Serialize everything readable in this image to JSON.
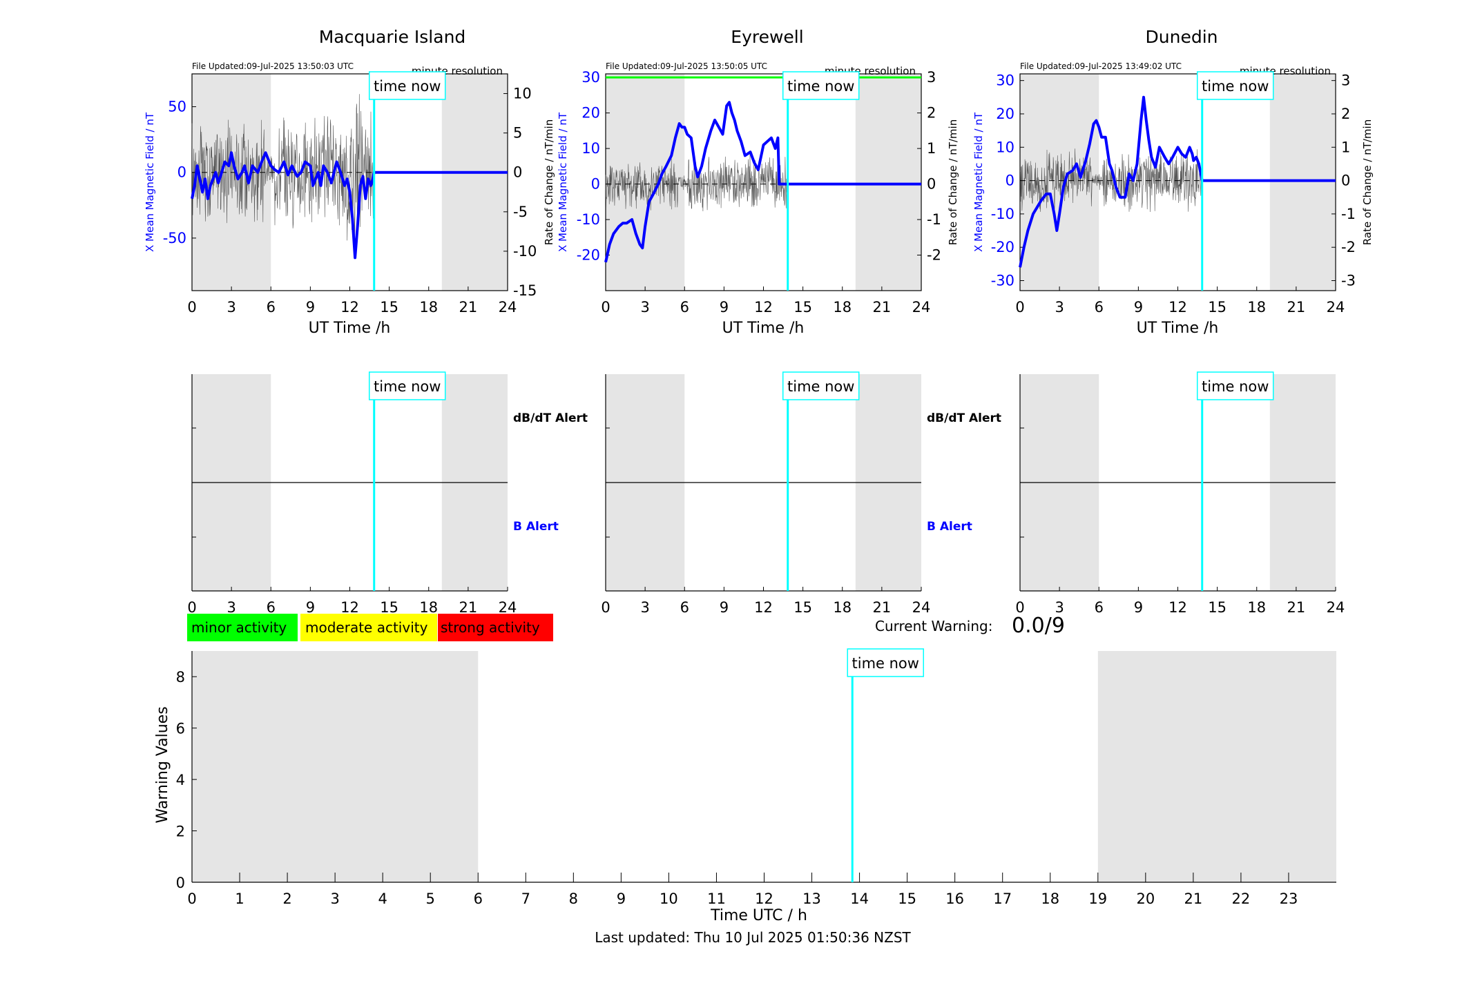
{
  "colors": {
    "b_series": "#0000ff",
    "rate_series": "#000000",
    "time_now": "#00ffff",
    "shade": "#e5e5e5",
    "minor": "#00ff00",
    "moderate": "#ffff00",
    "strong": "#ff0000",
    "threshold": "#00ff00"
  },
  "time_now_label": "time now",
  "dbdt_alert_label": "dB/dT Alert",
  "b_alert_label": "B Alert",
  "legend": {
    "minor": "minor activity",
    "moderate": "moderate activity",
    "strong": "strong activity"
  },
  "current_warning": {
    "label": "Current Warning:",
    "value": "0.0/9"
  },
  "last_updated": "Last updated: Thu 10 Jul 2025 01:50:36 NZST",
  "chart_data": [
    {
      "type": "line",
      "title": "Macquarie Island",
      "file_updated": "File Updated:09-Jul-2025 13:50:03 UTC",
      "resolution": "minute resolution",
      "xlabel": "UT Time /h",
      "ylabel": "X Mean Magnetic Field / nT",
      "y2label": "Rate of Change / nT/min",
      "xlim": [
        0,
        24
      ],
      "ylim": [
        -90,
        75
      ],
      "y2lim": [
        -15,
        12.5
      ],
      "xticks": [
        0,
        3,
        6,
        9,
        12,
        15,
        18,
        21,
        24
      ],
      "yticks": [
        -50,
        0,
        50
      ],
      "y2ticks": [
        -15,
        -10,
        -5,
        0,
        5,
        10
      ],
      "shade": [
        [
          0,
          6
        ],
        [
          19,
          24
        ]
      ],
      "time_now": 13.85,
      "series": [
        {
          "x": [
            0,
            0.2,
            0.4,
            0.6,
            0.8,
            1.0,
            1.2,
            1.4,
            1.6,
            1.8,
            2.0,
            2.2,
            2.5,
            2.8,
            3.0,
            3.2,
            3.5,
            3.8,
            4.0,
            4.3,
            4.6,
            5.0,
            5.3,
            5.6,
            5.8,
            6.0,
            6.3,
            6.6,
            7.0,
            7.3,
            7.6,
            8.0,
            8.3,
            8.6,
            9.0,
            9.2,
            9.4,
            9.6,
            9.8,
            10.0,
            10.3,
            10.6,
            11.0,
            11.3,
            11.6,
            11.8,
            12.0,
            12.2,
            12.4,
            12.6,
            12.8,
            13.0,
            13.2,
            13.4,
            13.6,
            13.75,
            13.85,
            24
          ],
          "values": [
            -20,
            -10,
            5,
            -5,
            -15,
            -5,
            -20,
            -10,
            -5,
            0,
            -8,
            -2,
            8,
            5,
            15,
            5,
            -5,
            0,
            5,
            -8,
            5,
            0,
            8,
            15,
            10,
            5,
            2,
            0,
            8,
            -2,
            5,
            -3,
            0,
            8,
            5,
            -10,
            -5,
            0,
            -10,
            5,
            0,
            -8,
            8,
            0,
            -10,
            -5,
            -15,
            -35,
            -65,
            -40,
            -10,
            -3,
            -20,
            -5,
            -10,
            -5,
            0,
            0
          ]
        },
        {
          "axis": "right",
          "generated": true,
          "x": [
            0,
            13.85
          ],
          "values": [
            0,
            0
          ]
        }
      ]
    },
    {
      "type": "line",
      "title": "Eyrewell",
      "file_updated": "File Updated:09-Jul-2025 13:50:05 UTC",
      "resolution": "minute resolution",
      "xlabel": "UT Time /h",
      "ylabel": "X Mean Magnetic Field / nT",
      "y2label": "Rate of Change / nT/min",
      "xlim": [
        0,
        24
      ],
      "ylim": [
        -30,
        31
      ],
      "y2lim": [
        -3,
        3.1
      ],
      "xticks": [
        0,
        3,
        6,
        9,
        12,
        15,
        18,
        21,
        24
      ],
      "yticks": [
        -20,
        -10,
        0,
        10,
        20,
        30
      ],
      "y2ticks": [
        -2,
        -1,
        0,
        1,
        2,
        3
      ],
      "shade": [
        [
          0,
          6
        ],
        [
          19,
          24
        ]
      ],
      "time_now": 13.85,
      "threshold": 30,
      "series": [
        {
          "x": [
            0,
            0.3,
            0.6,
            1.0,
            1.3,
            1.6,
            2.0,
            2.3,
            2.6,
            2.8,
            3.0,
            3.3,
            3.6,
            4.0,
            4.3,
            4.6,
            5.0,
            5.3,
            5.6,
            5.8,
            6.0,
            6.2,
            6.5,
            6.8,
            7.0,
            7.3,
            7.6,
            8.0,
            8.3,
            8.6,
            8.9,
            9.2,
            9.4,
            9.6,
            9.8,
            10.0,
            10.3,
            10.6,
            11.0,
            11.3,
            11.6,
            12.0,
            12.3,
            12.6,
            12.9,
            13.1,
            13.2,
            24
          ],
          "values": [
            -22,
            -17,
            -14,
            -12,
            -11,
            -11,
            -10,
            -14,
            -17,
            -18,
            -12,
            -5,
            -3,
            0,
            3,
            5,
            8,
            13,
            17,
            16,
            16,
            14,
            13,
            5,
            2,
            5,
            10,
            15,
            18,
            16,
            14,
            22,
            23,
            20,
            18,
            15,
            12,
            8,
            9,
            6,
            4,
            11,
            12,
            13,
            10,
            13,
            0,
            0
          ]
        },
        {
          "axis": "right",
          "generated": true,
          "x": [
            0,
            13.85
          ],
          "values": [
            0,
            0
          ]
        }
      ]
    },
    {
      "type": "line",
      "title": "Dunedin",
      "file_updated": "File Updated:09-Jul-2025 13:49:02 UTC",
      "resolution": "minute resolution",
      "xlabel": "UT Time /h",
      "ylabel": "X Mean Magnetic Field / nT",
      "y2label": "Rate of Change / nT/min",
      "xlim": [
        0,
        24
      ],
      "ylim": [
        -33,
        32
      ],
      "y2lim": [
        -3.3,
        3.2
      ],
      "xticks": [
        0,
        3,
        6,
        9,
        12,
        15,
        18,
        21,
        24
      ],
      "yticks": [
        -30,
        -20,
        -10,
        0,
        10,
        20,
        30
      ],
      "y2ticks": [
        -3,
        -2,
        -1,
        0,
        1,
        2,
        3
      ],
      "shade": [
        [
          0,
          6
        ],
        [
          19,
          24
        ]
      ],
      "time_now": 13.85,
      "series": [
        {
          "x": [
            0,
            0.3,
            0.6,
            1.0,
            1.3,
            1.6,
            2.0,
            2.3,
            2.6,
            2.8,
            3.0,
            3.3,
            3.6,
            4.0,
            4.3,
            4.6,
            5.0,
            5.3,
            5.6,
            5.8,
            6.0,
            6.2,
            6.5,
            6.8,
            7.0,
            7.3,
            7.6,
            8.0,
            8.3,
            8.6,
            8.9,
            9.2,
            9.4,
            9.6,
            9.8,
            10.0,
            10.3,
            10.6,
            11.0,
            11.3,
            11.6,
            12.0,
            12.3,
            12.6,
            12.9,
            13.1,
            13.2,
            13.4,
            13.6,
            13.85,
            24
          ],
          "values": [
            -26,
            -20,
            -15,
            -10,
            -8,
            -6,
            -4,
            -4,
            -10,
            -15,
            -10,
            -2,
            2,
            3,
            5,
            1,
            6,
            11,
            17,
            18,
            16,
            13,
            13,
            5,
            3,
            -2,
            -5,
            -5,
            2,
            0,
            5,
            18,
            25,
            18,
            12,
            7,
            4,
            10,
            7,
            5,
            7,
            10,
            8,
            7,
            10,
            8,
            6,
            7,
            5,
            0,
            0
          ]
        },
        {
          "axis": "right",
          "generated": true,
          "x": [
            0,
            13.85
          ],
          "values": [
            0,
            0
          ]
        }
      ]
    },
    {
      "type": "line",
      "role": "alerts",
      "xlim": [
        0,
        24
      ],
      "xticks": [
        0,
        3,
        6,
        9,
        12,
        15,
        18,
        21,
        24
      ],
      "shade": [
        [
          0,
          6
        ],
        [
          19,
          24
        ]
      ],
      "time_now": 13.85
    },
    {
      "type": "line",
      "role": "alerts",
      "xlim": [
        0,
        24
      ],
      "xticks": [
        0,
        3,
        6,
        9,
        12,
        15,
        18,
        21,
        24
      ],
      "shade": [
        [
          0,
          6
        ],
        [
          19,
          24
        ]
      ],
      "time_now": 13.85
    },
    {
      "type": "line",
      "role": "alerts",
      "xlim": [
        0,
        24
      ],
      "xticks": [
        0,
        3,
        6,
        9,
        12,
        15,
        18,
        21,
        24
      ],
      "shade": [
        [
          0,
          6
        ],
        [
          19,
          24
        ]
      ],
      "time_now": 13.85
    },
    {
      "type": "line",
      "xlabel": "Time UTC / h",
      "ylabel": "Warning Values",
      "xlim": [
        0,
        24
      ],
      "ylim": [
        0,
        9
      ],
      "xticks": [
        0,
        1,
        2,
        3,
        4,
        5,
        6,
        7,
        8,
        9,
        10,
        11,
        12,
        13,
        14,
        15,
        16,
        17,
        18,
        19,
        20,
        21,
        22,
        23
      ],
      "yticks": [
        0,
        2,
        4,
        6,
        8
      ],
      "shade": [
        [
          0,
          6
        ],
        [
          19,
          24
        ]
      ],
      "time_now": 13.85,
      "series": []
    }
  ]
}
